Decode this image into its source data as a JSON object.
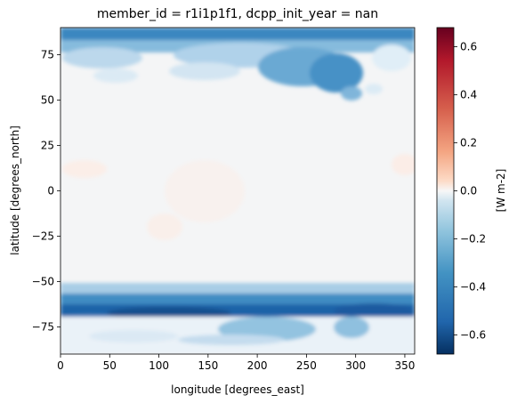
{
  "chart_data": {
    "type": "heatmap",
    "title": "member_id = r1i1p1f1, dcpp_init_year = nan",
    "xlabel": "longitude [degrees_east]",
    "ylabel": "latitude [degrees_north]",
    "xlim": [
      0,
      360
    ],
    "ylim": [
      -90,
      90
    ],
    "x_ticks": [
      0,
      50,
      100,
      150,
      200,
      250,
      300,
      350
    ],
    "y_ticks": [
      -75,
      -50,
      -25,
      0,
      25,
      50,
      75
    ],
    "grid": false,
    "colormap": "RdBu_r",
    "colorbar": {
      "label": "[W m-2]",
      "vmin": -0.68,
      "vmax": 0.68,
      "ticks": [
        -0.6,
        -0.4,
        -0.2,
        0.0,
        0.2,
        0.4,
        0.6
      ],
      "tick_labels": [
        "−0.6",
        "−0.4",
        "−0.2",
        "0.0",
        "0.2",
        "0.4",
        "0.6"
      ]
    },
    "field_description_values": {
      "north_polar_band_lat_85_90": -0.45,
      "arctic_land_60_80": -0.3,
      "southern_ocean_belt_lat_60_70": -0.55,
      "antarctica_lat_below_75": -0.15,
      "tropics": 0.0
    }
  }
}
